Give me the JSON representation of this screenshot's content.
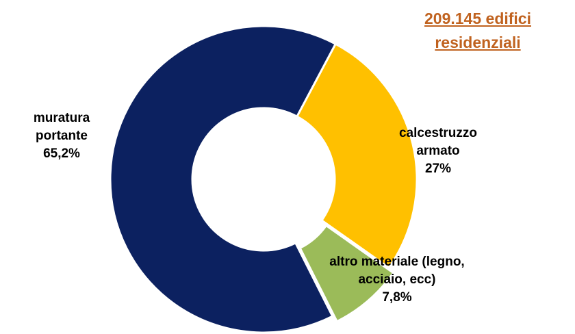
{
  "chart_data": {
    "type": "donut",
    "title": "209.145 edifici residenziali",
    "categories": [
      "calcestruzzo armato",
      "altro materiale (legno, acciaio, ecc)",
      "muratura portante"
    ],
    "values": [
      27,
      7.8,
      65.2
    ],
    "value_labels": [
      "27%",
      "7,8%",
      "65,2%"
    ],
    "colors": [
      "#ffc000",
      "#9bbb59",
      "#0c2160"
    ]
  }
}
